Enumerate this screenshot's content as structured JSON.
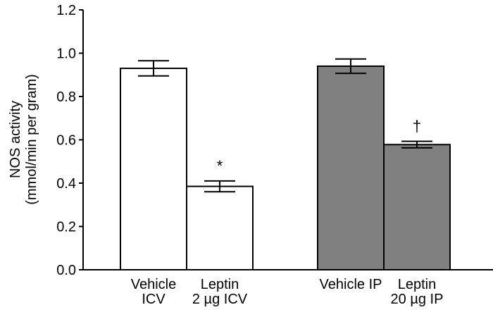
{
  "chart_data": {
    "type": "bar",
    "categories": [
      [
        "Vehicle",
        "ICV"
      ],
      [
        "Leptin",
        "2 µg ICV"
      ],
      [
        "Vehicle IP"
      ],
      [
        "Leptin",
        "20 µg IP"
      ]
    ],
    "values": [
      0.93,
      0.385,
      0.94,
      0.578
    ],
    "errors": [
      0.035,
      0.025,
      0.033,
      0.015
    ],
    "annotations": [
      "",
      "*",
      "",
      "†"
    ],
    "bar_colors": [
      "#ffffff",
      "#ffffff",
      "#808080",
      "#808080"
    ],
    "edge_color": "#000000",
    "ylabel": [
      "NOS activity",
      "(mmol/min per gram)"
    ],
    "ylim": [
      0,
      1.2
    ],
    "yticks": [
      "0.0",
      "0.2",
      "0.4",
      "0.6",
      "0.8",
      "1.0",
      "1.2"
    ],
    "grid": false
  }
}
